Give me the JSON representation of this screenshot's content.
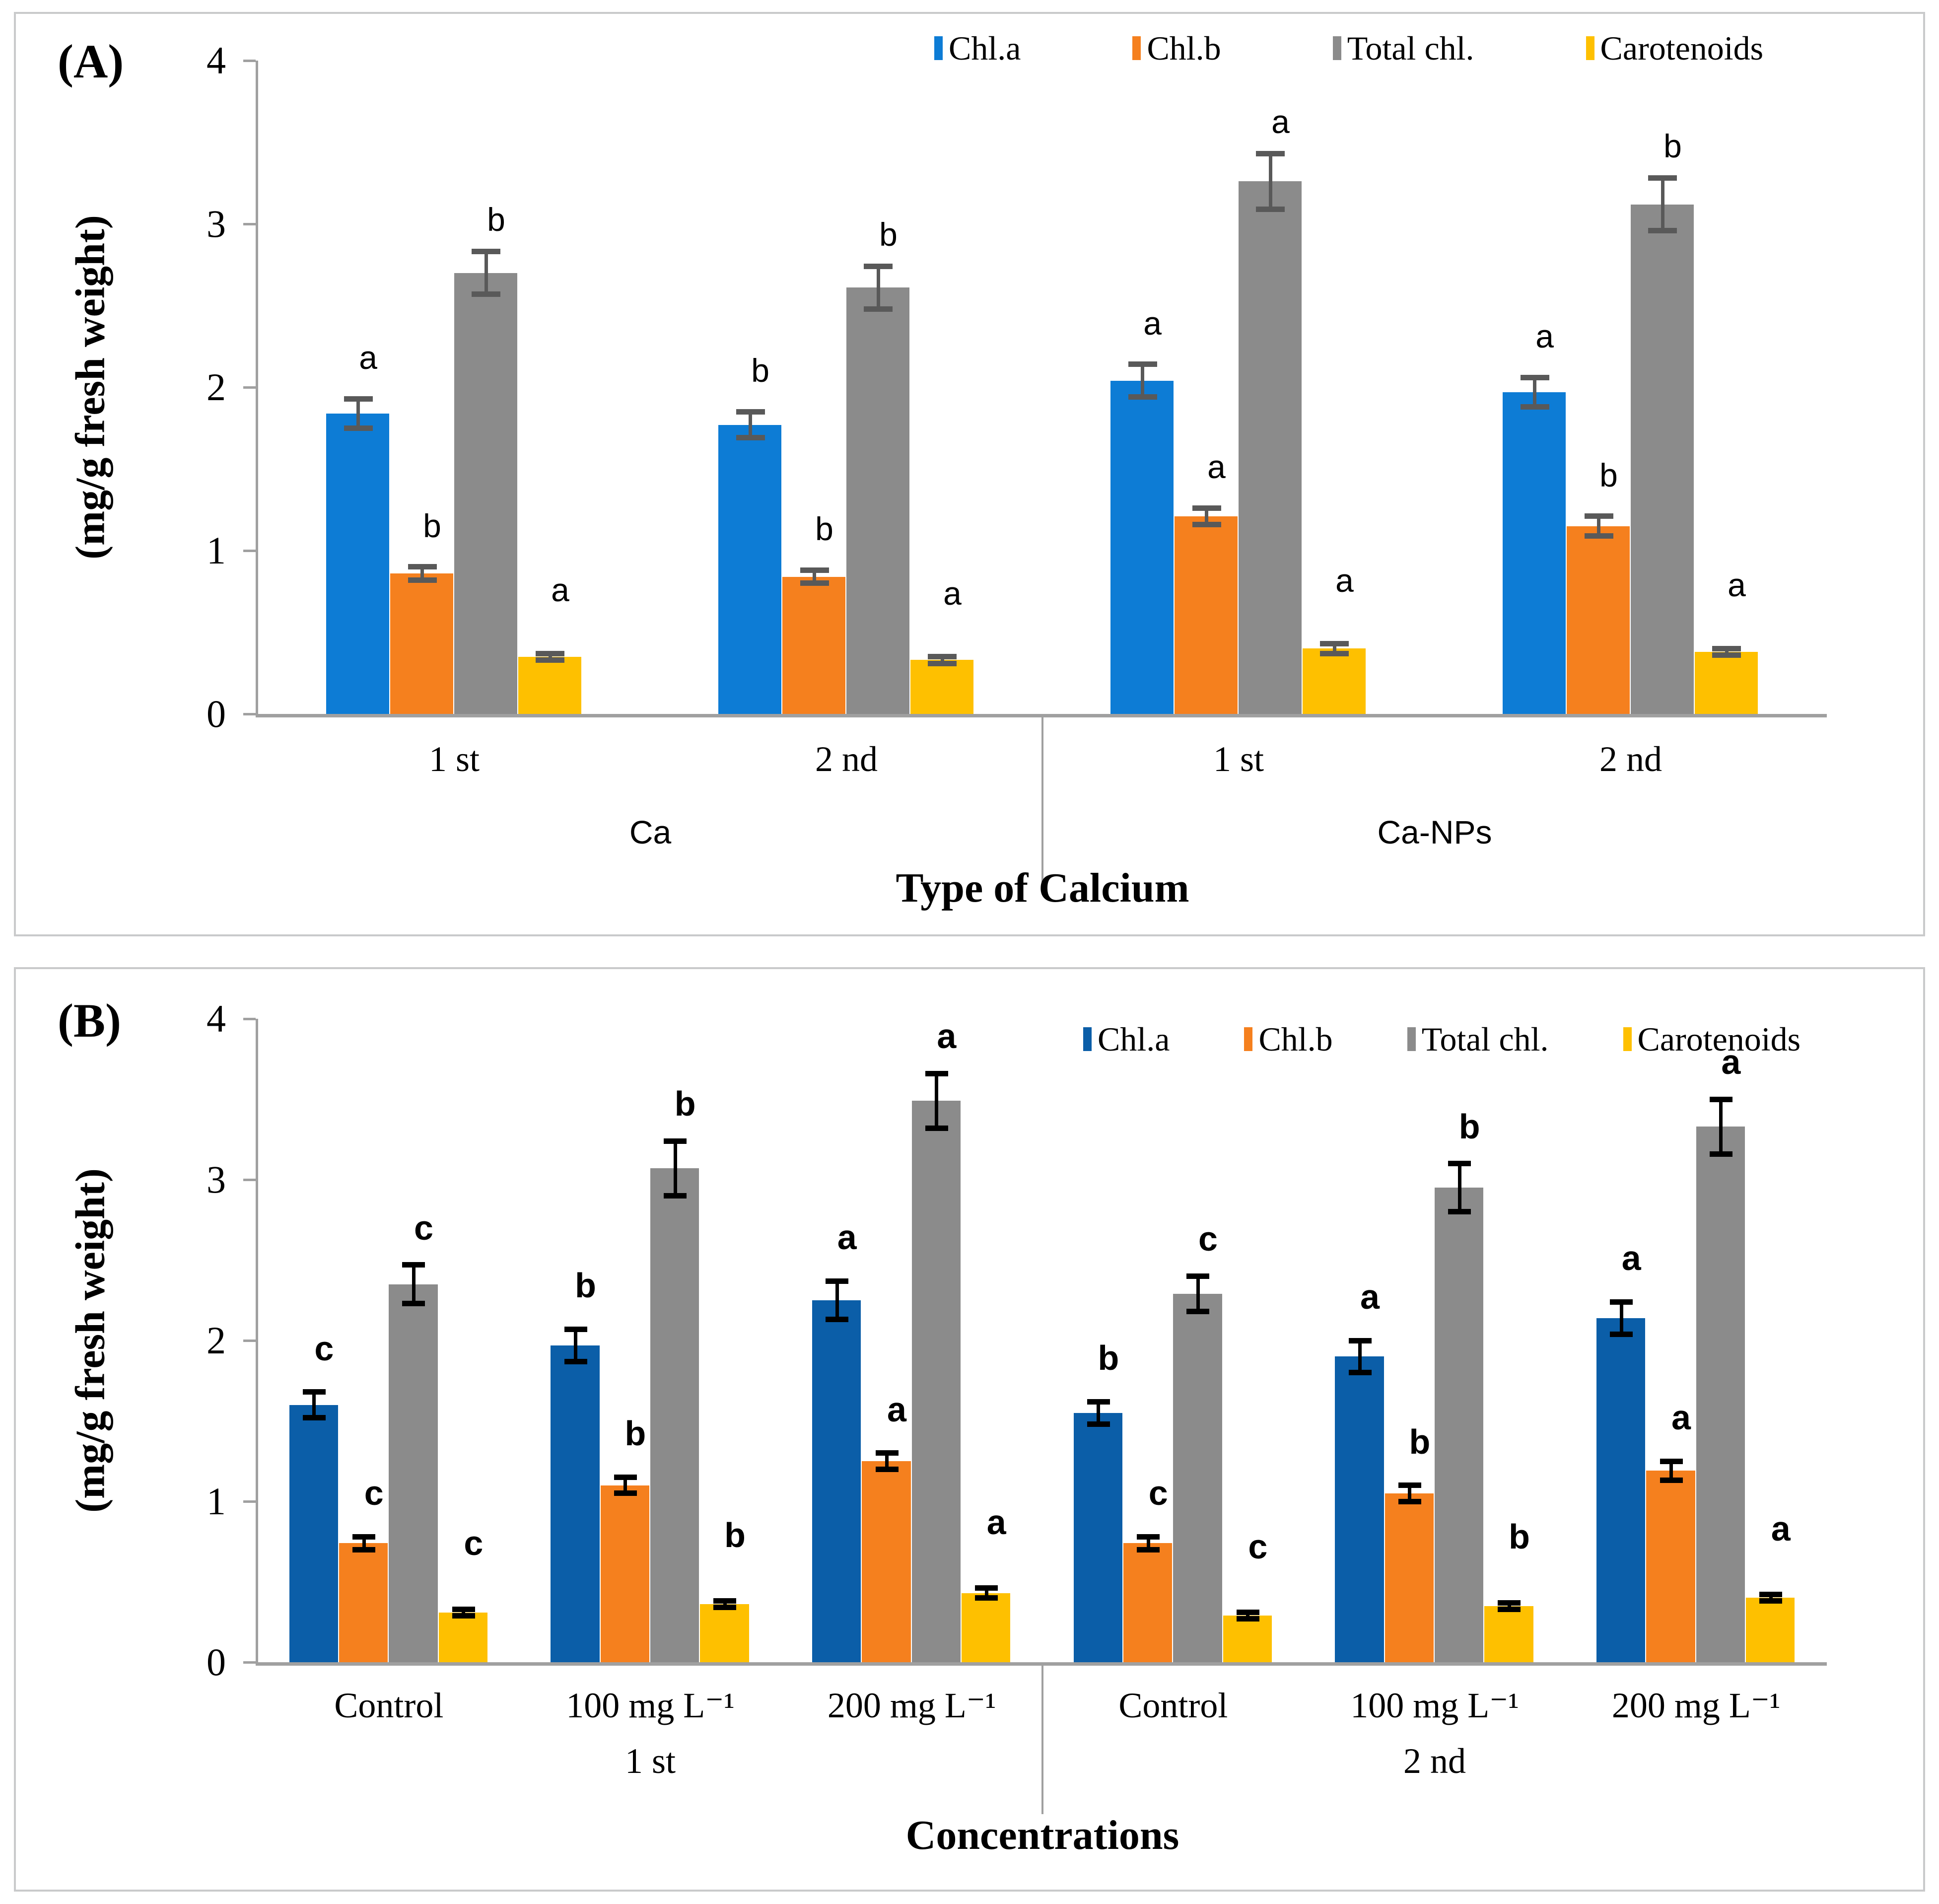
{
  "figure": {
    "background": "#ffffff",
    "panel_border_color": "#c9cacb",
    "axis_color": "#a0a0a0"
  },
  "chart_data": [
    {
      "type": "bar",
      "panel_label": "(A)",
      "ylabel": "(mg/g fresh weight)",
      "xlabel": "Type of Calcium",
      "ylim": [
        0,
        4
      ],
      "yticks": [
        "0",
        "1",
        "2",
        "3",
        "4"
      ],
      "grid": false,
      "legend_position": "top-right",
      "categories": [
        "1 st",
        "2 nd",
        "1 st",
        "2 nd"
      ],
      "sections": [
        {
          "label": "Ca",
          "from": 0,
          "to": 2
        },
        {
          "label": "Ca-NPs",
          "from": 2,
          "to": 4
        }
      ],
      "series": [
        {
          "name": "Chl.a",
          "color": "#0d7cd5",
          "values": [
            1.84,
            1.77,
            2.04,
            1.97
          ],
          "errors": [
            0.09,
            0.08,
            0.1,
            0.09
          ],
          "letters": [
            "a",
            "b",
            "a",
            "a"
          ]
        },
        {
          "name": "Chl.b",
          "color": "#f5801e",
          "values": [
            0.86,
            0.84,
            1.21,
            1.15
          ],
          "errors": [
            0.04,
            0.04,
            0.05,
            0.06
          ],
          "letters": [
            "b",
            "b",
            "a",
            "b"
          ]
        },
        {
          "name": "Total chl.",
          "color": "#8b8b8b",
          "values": [
            2.7,
            2.61,
            3.26,
            3.12
          ],
          "errors": [
            0.13,
            0.13,
            0.17,
            0.16
          ],
          "letters": [
            "b",
            "b",
            "a",
            "b"
          ]
        },
        {
          "name": "Carotenoids",
          "color": "#fec000",
          "values": [
            0.35,
            0.33,
            0.4,
            0.38
          ],
          "errors": [
            0.02,
            0.02,
            0.03,
            0.02
          ],
          "letters": [
            "a",
            "a",
            "a",
            "a"
          ]
        }
      ],
      "error_bar_color": "#595959",
      "letters_bold": false
    },
    {
      "type": "bar",
      "panel_label": "(B)",
      "ylabel": "(mg/g fresh weight)",
      "xlabel": "Concentrations",
      "ylim": [
        0,
        4
      ],
      "yticks": [
        "0",
        "1",
        "2",
        "3",
        "4"
      ],
      "grid": false,
      "legend_position": "top-right-inside",
      "categories": [
        "Control",
        "100 mg L⁻¹",
        "200 mg L⁻¹",
        "Control",
        "100 mg L⁻¹",
        "200 mg L⁻¹"
      ],
      "sections": [
        {
          "label": "1 st",
          "from": 0,
          "to": 3,
          "label_under_group": 1
        },
        {
          "label": "2 nd",
          "from": 3,
          "to": 6,
          "label_under_group": 4
        }
      ],
      "series": [
        {
          "name": "Chl.a",
          "color": "#0b5ea8",
          "values": [
            1.6,
            1.97,
            2.25,
            1.55,
            1.9,
            2.14
          ],
          "errors": [
            0.08,
            0.1,
            0.12,
            0.07,
            0.1,
            0.1
          ],
          "letters": [
            "c",
            "b",
            "a",
            "b",
            "a",
            "a"
          ]
        },
        {
          "name": "Chl.b",
          "color": "#f5801e",
          "values": [
            0.74,
            1.1,
            1.25,
            0.74,
            1.05,
            1.19
          ],
          "errors": [
            0.04,
            0.05,
            0.05,
            0.04,
            0.05,
            0.06
          ],
          "letters": [
            "c",
            "b",
            "a",
            "c",
            "b",
            "a"
          ]
        },
        {
          "name": "Total chl.",
          "color": "#8b8b8b",
          "values": [
            2.35,
            3.07,
            3.49,
            2.29,
            2.95,
            3.33
          ],
          "errors": [
            0.12,
            0.17,
            0.17,
            0.11,
            0.15,
            0.17
          ],
          "letters": [
            "c",
            "b",
            "a",
            "c",
            "b",
            "a"
          ]
        },
        {
          "name": "Carotenoids",
          "color": "#fec000",
          "values": [
            0.31,
            0.36,
            0.43,
            0.29,
            0.35,
            0.4
          ],
          "errors": [
            0.02,
            0.02,
            0.03,
            0.02,
            0.02,
            0.02
          ],
          "letters": [
            "c",
            "b",
            "a",
            "c",
            "b",
            "a"
          ]
        }
      ],
      "error_bar_color": "#000000",
      "letters_bold": true
    }
  ]
}
